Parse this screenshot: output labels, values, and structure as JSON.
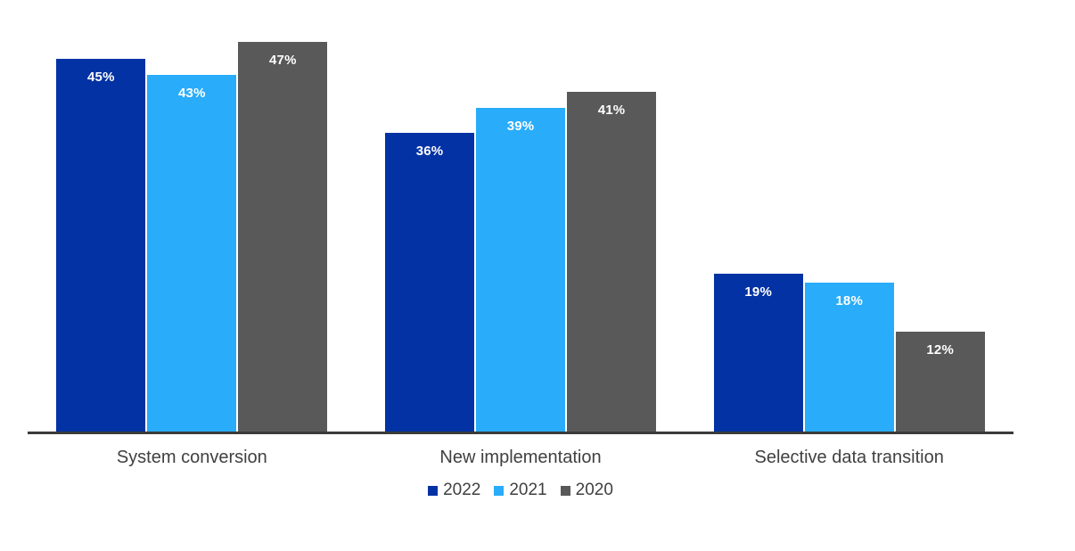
{
  "chart_data": {
    "type": "bar",
    "title": "",
    "categories": [
      "System conversion",
      "New implementation",
      "Selective data transition"
    ],
    "series": [
      {
        "name": "2022",
        "color": "#0232A4",
        "values": [
          45,
          36,
          19
        ],
        "labels": [
          "45%",
          "36%",
          "19%"
        ]
      },
      {
        "name": "2021",
        "color": "#29ACFA",
        "values": [
          43,
          39,
          18
        ],
        "labels": [
          "43%",
          "39%",
          "18%"
        ]
      },
      {
        "name": "2020",
        "color": "#595959",
        "values": [
          47,
          41,
          12
        ],
        "labels": [
          "47%",
          "41%",
          "12%"
        ]
      }
    ],
    "value_unit": "%",
    "ylim": [
      0,
      50
    ],
    "grid": false,
    "y_axis_visible": false,
    "legend_position": "bottom",
    "colors": {
      "axis_line": "#3A3A3A",
      "category_label": "#404040",
      "legend_label": "#404040",
      "data_label": "#FFFFFF",
      "background": "#FFFFFF"
    }
  }
}
